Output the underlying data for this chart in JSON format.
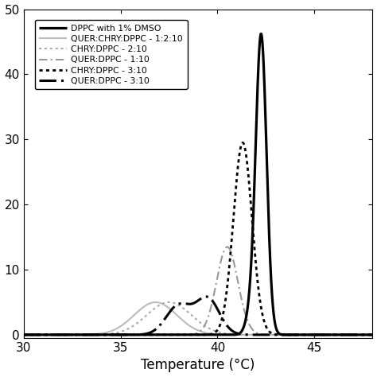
{
  "xlabel": "Temperature (°C)",
  "xlim": [
    30,
    48
  ],
  "ylim": [
    -0.5,
    50
  ],
  "yticks": [
    0,
    10,
    20,
    30,
    40,
    50
  ],
  "xticks": [
    30,
    35,
    40,
    45
  ],
  "background_color": "#ffffff",
  "legend_labels": [
    "DPPC with 1% DMSO",
    "QUER:CHRY:DPPC - 1:2:10",
    "CHRY:DPPC - 2:10",
    "QUER:DPPC - 1:10",
    "CHRY:DPPC - 3:10",
    "QUER:DPPC - 3:10"
  ]
}
